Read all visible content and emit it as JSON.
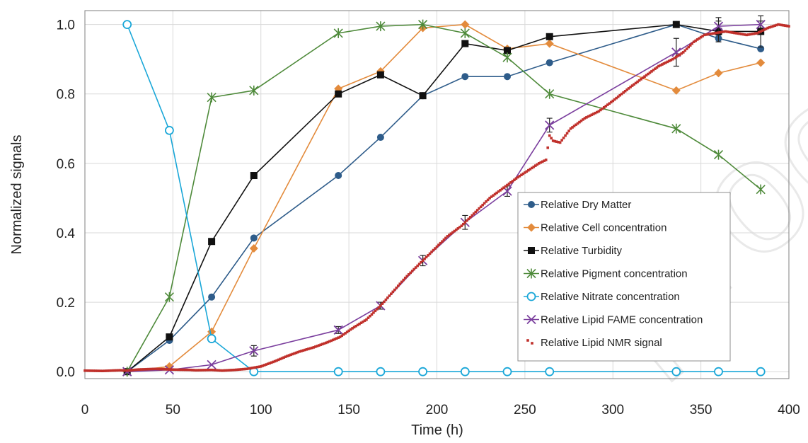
{
  "chart_data": {
    "type": "line",
    "title": "",
    "xlabel": "Time (h)",
    "ylabel": "Normalized signals",
    "xlim": [
      0,
      400
    ],
    "ylim": [
      -0.02,
      1.04
    ],
    "x_ticks": [
      "0",
      "50",
      "100",
      "150",
      "200",
      "250",
      "300",
      "350",
      "400"
    ],
    "y_ticks": [
      "0.0",
      "0.2",
      "0.4",
      "0.6",
      "0.8",
      "1.0"
    ],
    "x_tick_values": [
      0,
      50,
      100,
      150,
      200,
      250,
      300,
      350,
      400
    ],
    "y_tick_values": [
      0,
      0.2,
      0.4,
      0.6,
      0.8,
      1.0
    ],
    "grid": true,
    "legend_position": "bottom-right",
    "watermark": "proof",
    "series": [
      {
        "name": "Relative Dry Matter",
        "color": "#2e5c8a",
        "marker": "circle-filled",
        "x": [
          24,
          48,
          72,
          96,
          144,
          168,
          192,
          216,
          240,
          264,
          336,
          360,
          384
        ],
        "y": [
          0.0,
          0.09,
          0.215,
          0.385,
          0.565,
          0.675,
          0.795,
          0.85,
          0.85,
          0.89,
          1.0,
          0.96,
          0.93
        ]
      },
      {
        "name": "Relative Cell concentration",
        "color": "#e38b3c",
        "marker": "diamond",
        "x": [
          24,
          48,
          72,
          96,
          144,
          168,
          192,
          216,
          240,
          264,
          336,
          360,
          384
        ],
        "y": [
          0.0,
          0.015,
          0.115,
          0.355,
          0.815,
          0.865,
          0.99,
          1.0,
          0.93,
          0.945,
          0.81,
          0.86,
          0.89
        ]
      },
      {
        "name": "Relative Turbidity",
        "color": "#111111",
        "marker": "square",
        "x": [
          24,
          48,
          72,
          96,
          144,
          168,
          192,
          216,
          240,
          264,
          336,
          360,
          384
        ],
        "y": [
          0.0,
          0.1,
          0.375,
          0.565,
          0.8,
          0.855,
          0.795,
          0.945,
          0.925,
          0.965,
          1.0,
          0.98,
          0.98
        ],
        "error": [
          0,
          0,
          0,
          0,
          0,
          0,
          0,
          0,
          0,
          0,
          0,
          0.03,
          0.045
        ]
      },
      {
        "name": "Relative Pigment concentration",
        "color": "#4e8a3a",
        "marker": "asterisk",
        "x": [
          24,
          48,
          72,
          96,
          144,
          168,
          192,
          216,
          240,
          264,
          336,
          360,
          384
        ],
        "y": [
          0.0,
          0.215,
          0.79,
          0.81,
          0.975,
          0.995,
          1.0,
          0.975,
          0.905,
          0.8,
          0.7,
          0.625,
          0.525
        ]
      },
      {
        "name": "Relative Nitrate concentration",
        "color": "#1aa7d8",
        "marker": "circle-open",
        "x": [
          24,
          48,
          72,
          96,
          144,
          168,
          192,
          216,
          240,
          264,
          336,
          360,
          384
        ],
        "y": [
          1.0,
          0.695,
          0.095,
          0.0,
          0.0,
          0.0,
          0.0,
          0.0,
          0.0,
          0.0,
          0.0,
          0.0,
          0.0
        ]
      },
      {
        "name": "Relative Lipid FAME concentration",
        "color": "#7b3f9e",
        "marker": "x",
        "x": [
          24,
          48,
          72,
          96,
          144,
          168,
          192,
          216,
          240,
          264,
          336,
          360,
          384
        ],
        "y": [
          0.0,
          0.005,
          0.02,
          0.06,
          0.12,
          0.19,
          0.32,
          0.43,
          0.52,
          0.71,
          0.92,
          0.995,
          1.0
        ],
        "error": [
          0,
          0,
          0,
          0.015,
          0.01,
          0.01,
          0.015,
          0.02,
          0.015,
          0.02,
          0.04,
          0.025,
          0.01
        ]
      },
      {
        "name": "Relative Lipid NMR signal",
        "color": "#c0302b",
        "marker": "dot",
        "x": [
          0,
          10,
          20,
          24,
          30,
          40,
          50,
          60,
          63,
          72,
          78,
          85,
          92,
          100,
          108,
          115,
          122,
          130,
          138,
          145,
          152,
          160,
          168,
          175,
          182,
          190,
          198,
          206,
          214,
          222,
          230,
          238,
          246,
          252,
          258,
          262,
          264,
          266,
          270,
          276,
          284,
          292,
          300,
          310,
          318,
          326,
          334,
          340,
          346,
          352,
          358,
          364,
          370,
          376,
          382,
          388,
          394,
          400
        ],
        "y": [
          0.003,
          0.002,
          0.004,
          0.003,
          0.006,
          0.008,
          0.006,
          0.005,
          0.004,
          0.005,
          0.003,
          0.005,
          0.008,
          0.015,
          0.03,
          0.045,
          0.058,
          0.07,
          0.085,
          0.1,
          0.125,
          0.15,
          0.19,
          0.23,
          0.27,
          0.31,
          0.35,
          0.39,
          0.42,
          0.46,
          0.5,
          0.53,
          0.56,
          0.58,
          0.6,
          0.61,
          0.68,
          0.665,
          0.66,
          0.7,
          0.73,
          0.75,
          0.78,
          0.82,
          0.85,
          0.88,
          0.9,
          0.92,
          0.95,
          0.97,
          0.975,
          0.98,
          0.975,
          0.97,
          0.975,
          0.99,
          1.0,
          0.995
        ]
      }
    ]
  }
}
